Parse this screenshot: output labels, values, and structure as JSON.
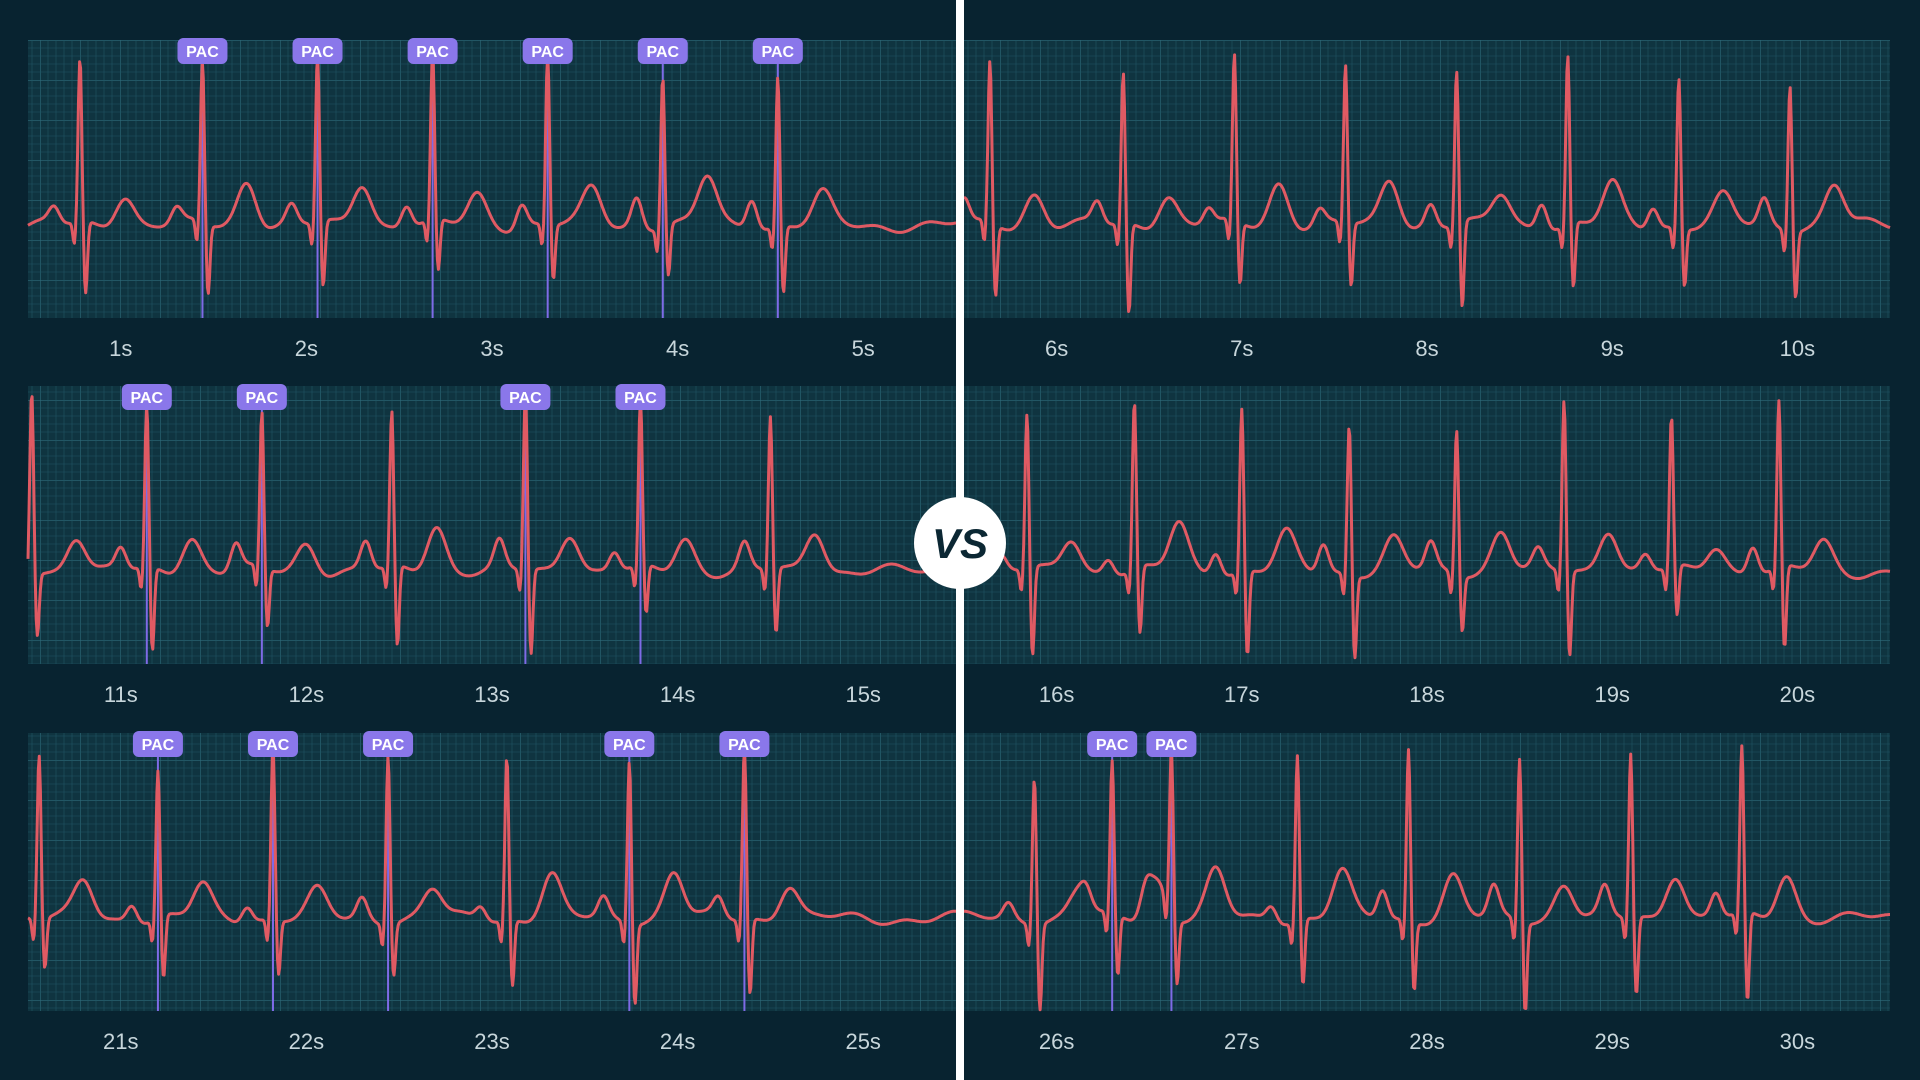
{
  "theme": {
    "background": "#082330",
    "grid_bg": "#0f3440",
    "grid_minor": "#1f5463",
    "grid_major": "#2d6b7a",
    "trace": "#e05a63",
    "pac_line": "#7e6be6",
    "pac_badge": "#8a77ea",
    "pac_text": "#ffffff",
    "tick_text": "#c7d6db",
    "divider": "#ffffff"
  },
  "pac_label": "PAC",
  "vs_label": "VS",
  "chart_data": {
    "type": "line",
    "y_unit": "relative amplitude",
    "ylim": [
      -0.5,
      1.0
    ],
    "grid": true,
    "rows": [
      {
        "left": {
          "ticks": [
            "1s",
            "2s",
            "3s",
            "4s",
            "5s"
          ],
          "beats": [
            0.28,
            0.94,
            1.56,
            2.18,
            2.8,
            3.42,
            4.04
          ],
          "pac_beats": [
            0.94,
            1.56,
            2.18,
            2.8,
            3.42,
            4.04
          ]
        },
        "right": {
          "ticks": [
            "6s",
            "7s",
            "8s",
            "9s",
            "10s"
          ],
          "beats": [
            5.14,
            5.86,
            6.46,
            7.06,
            7.66,
            8.26,
            8.86,
            9.46
          ]
        }
      },
      {
        "left": {
          "ticks": [
            "11s",
            "12s",
            "13s",
            "14s",
            "15s"
          ],
          "beats": [
            10.02,
            10.64,
            11.26,
            11.96,
            12.68,
            13.3,
            14.0
          ],
          "pac_beats": [
            10.64,
            11.26,
            12.68,
            13.3
          ]
        },
        "right": {
          "ticks": [
            "16s",
            "17s",
            "18s",
            "19s",
            "20s"
          ],
          "beats": [
            15.34,
            15.92,
            16.5,
            17.08,
            17.66,
            18.24,
            18.82,
            19.4
          ]
        }
      },
      {
        "left": {
          "ticks": [
            "21s",
            "22s",
            "23s",
            "24s",
            "25s"
          ],
          "beats": [
            20.06,
            20.7,
            21.32,
            21.94,
            22.58,
            23.24,
            23.86
          ],
          "pac_beats": [
            20.7,
            21.32,
            21.94,
            23.24,
            23.86
          ]
        },
        "right": {
          "ticks": [
            "26s",
            "27s",
            "28s",
            "29s",
            "30s"
          ],
          "beats": [
            25.38,
            25.8,
            26.12,
            26.8,
            27.4,
            28.0,
            28.6,
            29.2
          ],
          "pac_beats": [
            25.8,
            26.12
          ]
        }
      }
    ]
  }
}
